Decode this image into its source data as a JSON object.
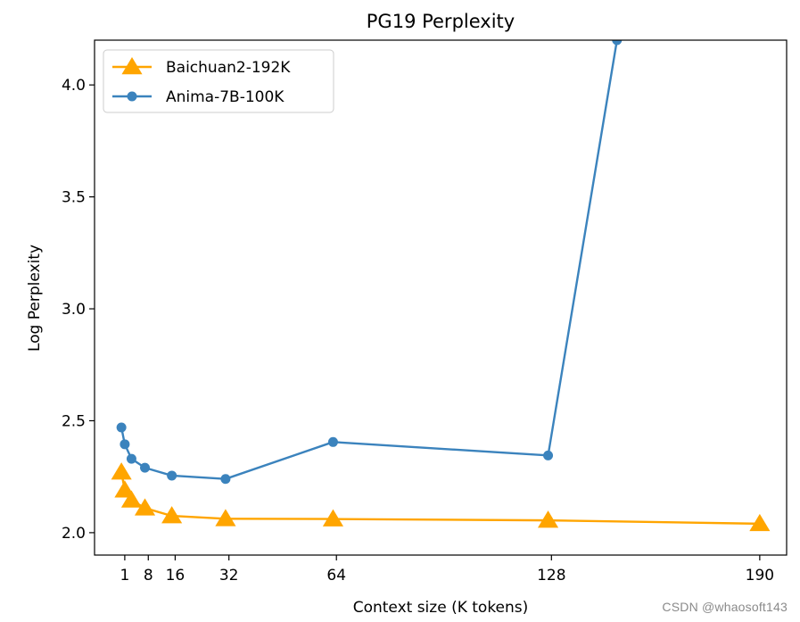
{
  "chart_data": {
    "type": "line",
    "title": "PG19 Perplexity",
    "xlabel": "Context size (K tokens)",
    "ylabel": "Log Perplexity",
    "xlim": [
      -8,
      198
    ],
    "ylim": [
      1.9,
      4.2
    ],
    "xticks": [
      1,
      8,
      16,
      32,
      64,
      128,
      190
    ],
    "xtick_labels": [
      "1",
      "8",
      "16",
      "32",
      "64",
      "128",
      "190"
    ],
    "yticks": [
      2.0,
      2.5,
      3.0,
      3.5,
      4.0
    ],
    "ytick_labels": [
      "2.0",
      "2.5",
      "3.0",
      "3.5",
      "4.0"
    ],
    "grid": false,
    "legend_position": "top-left",
    "series": [
      {
        "name": "Baichuan2-192K",
        "color": "#FFA500",
        "marker": "triangle",
        "x": [
          0,
          1,
          3,
          7,
          15,
          31,
          63,
          127,
          190
        ],
        "y": [
          2.27,
          2.19,
          2.145,
          2.11,
          2.075,
          2.062,
          2.061,
          2.055,
          2.04
        ]
      },
      {
        "name": "Anima-7B-100K",
        "color": "#3B83BD",
        "marker": "circle",
        "x": [
          0,
          1,
          3,
          7,
          15,
          31,
          63,
          127,
          147.5
        ],
        "y": [
          2.47,
          2.395,
          2.33,
          2.29,
          2.255,
          2.24,
          2.405,
          2.345,
          4.2
        ]
      }
    ]
  },
  "watermark": "CSDN @whaosoft143"
}
